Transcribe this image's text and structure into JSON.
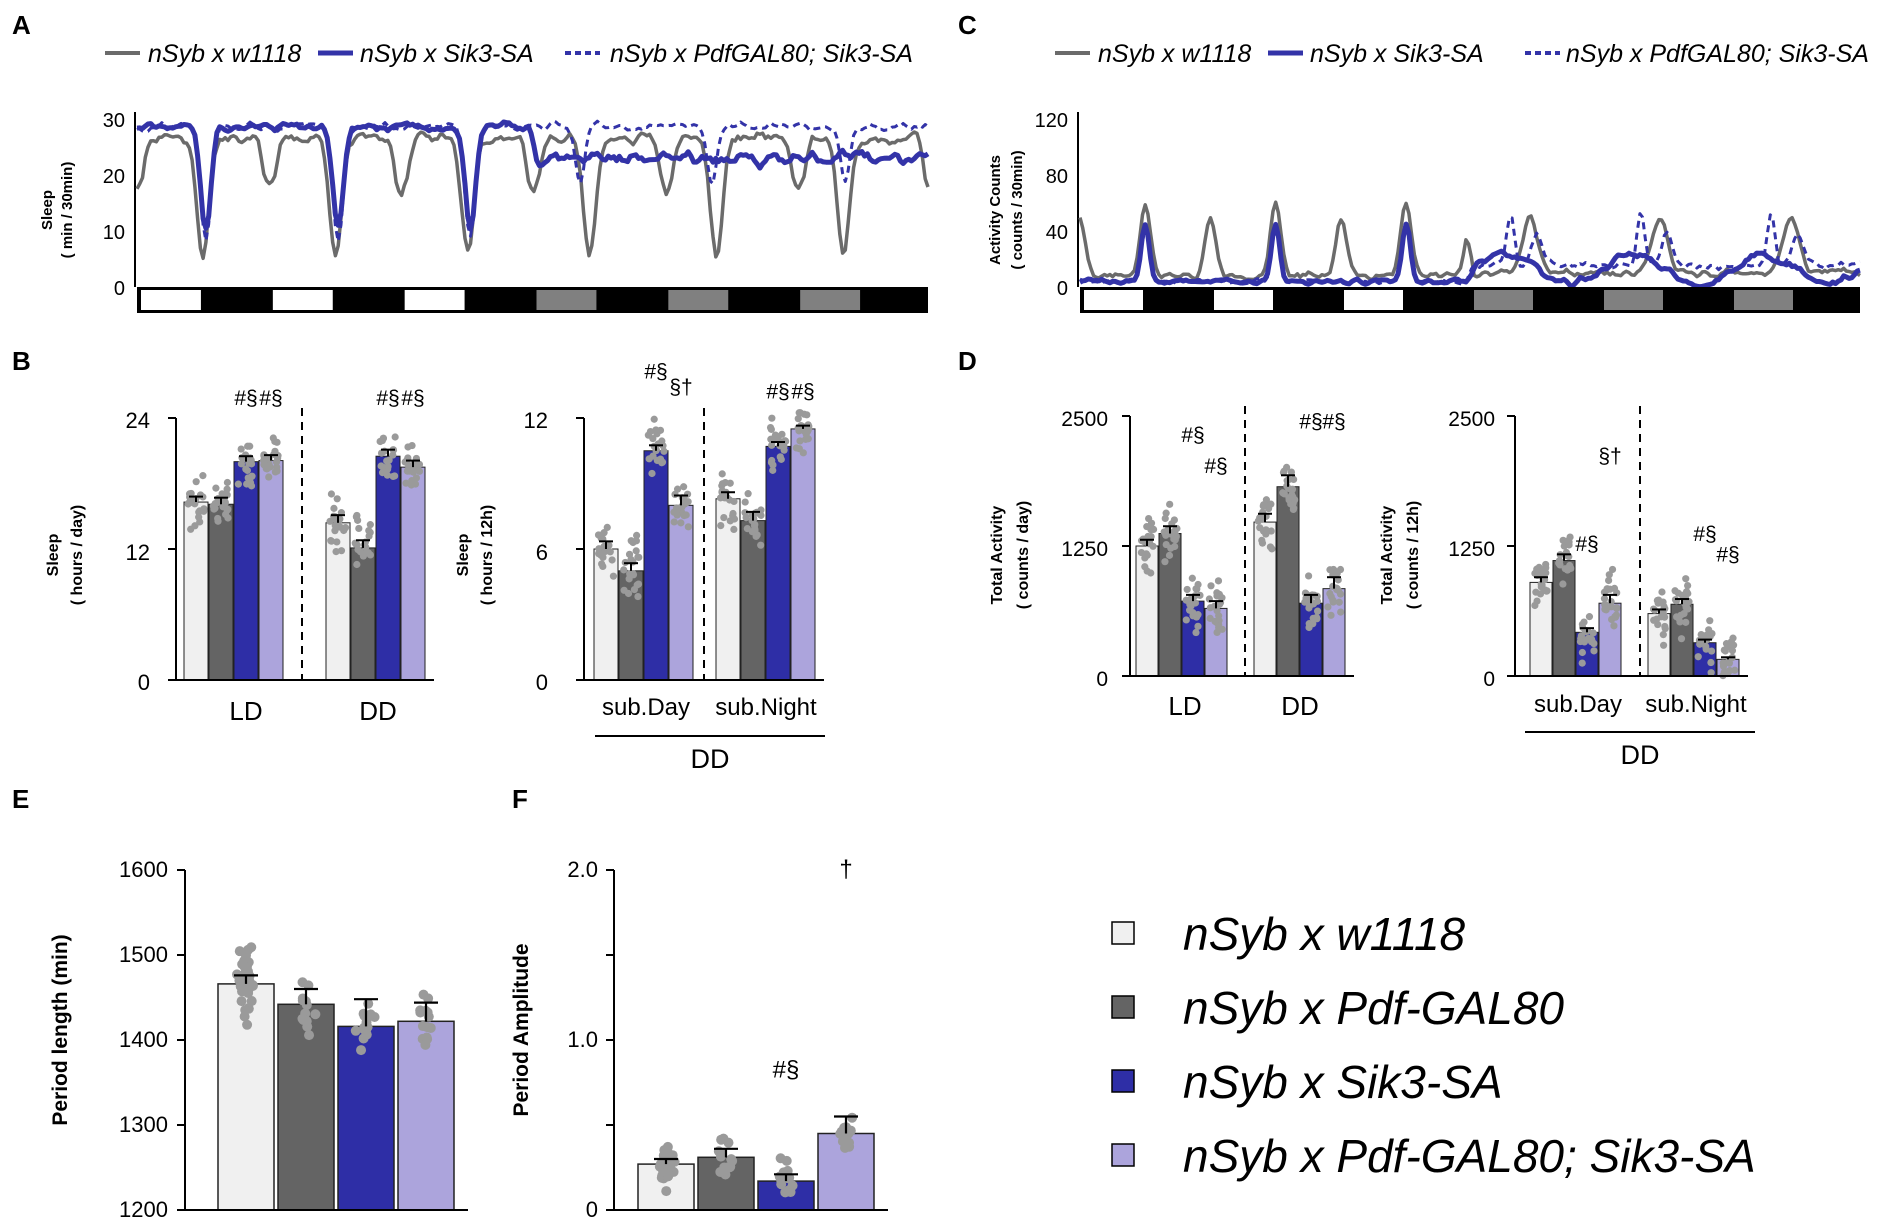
{
  "colors": {
    "c1": "#f0f0f0",
    "c2": "#646464",
    "c3": "#2e2ea6",
    "c4": "#aca4dc",
    "dots": "#9a9a9a",
    "grayline": "#6b6b6b",
    "blueline": "#3333a8",
    "axis": "#000000",
    "daybar": "#808080"
  },
  "panel_labels": [
    "A",
    "B",
    "C",
    "D",
    "E",
    "F"
  ],
  "top_legend": {
    "w1118": "nSyb x w1118",
    "sik3": "nSyb x Sik3-SA",
    "pdfsik3": "nSyb x PdfGAL80; Sik3-SA"
  },
  "legend": [
    {
      "label": "nSyb x w1118",
      "color": "#f0f0f0"
    },
    {
      "label": "nSyb x Pdf-GAL80",
      "color": "#646464"
    },
    {
      "label": "nSyb x Sik3-SA",
      "color": "#2e2ea6"
    },
    {
      "label": "nSyb x Pdf-GAL80; Sik3-SA",
      "color": "#aca4dc"
    }
  ],
  "chart_data": [
    {
      "id": "A",
      "type": "line",
      "ylabel_line1": "Sleep",
      "ylabel_line2": "( min / 30min)",
      "yticks": [
        "30",
        "20",
        "10",
        "0"
      ],
      "ylim": [
        0,
        30
      ],
      "days": 6,
      "day_bars": [
        "light",
        "light",
        "light",
        "subjective",
        "subjective",
        "subjective"
      ],
      "series": [
        {
          "name": "nSyb x w1118",
          "style": "solid-gray"
        },
        {
          "name": "nSyb x Sik3-SA",
          "style": "solid-blue"
        },
        {
          "name": "nSyb x PdfGAL80; Sik3-SA",
          "style": "dashed-blue"
        }
      ]
    },
    {
      "id": "C",
      "type": "line",
      "ylabel_line1": "Activity Counts",
      "ylabel_line2": "( counts / 30min)",
      "yticks": [
        "120",
        "80",
        "40",
        "0"
      ],
      "ylim": [
        0,
        120
      ],
      "days": 6,
      "day_bars": [
        "light",
        "light",
        "light",
        "subjective",
        "subjective",
        "subjective"
      ],
      "series": [
        {
          "name": "nSyb x w1118",
          "style": "solid-gray"
        },
        {
          "name": "nSyb x Sik3-SA",
          "style": "solid-blue"
        },
        {
          "name": "nSyb x PdfGAL80; Sik3-SA",
          "style": "dashed-blue"
        }
      ]
    },
    {
      "id": "B1",
      "type": "bar",
      "ylabel_line1": "Sleep",
      "ylabel_line2": "( hours / day)",
      "yticks": [
        "24",
        "12",
        "0"
      ],
      "ylim": [
        0,
        24
      ],
      "groups": [
        "LD",
        "DD"
      ],
      "values": [
        [
          16.3,
          16.1,
          20.0,
          20.1
        ],
        [
          14.4,
          12.1,
          20.5,
          19.5
        ]
      ],
      "errors": [
        [
          0.5,
          0.6,
          0.5,
          0.5
        ],
        [
          0.7,
          0.7,
          0.6,
          0.6
        ]
      ],
      "annotations": [
        {
          "group": 0,
          "bar": 2,
          "text": "#§",
          "y": 25.2
        },
        {
          "group": 0,
          "bar": 3,
          "text": "#§",
          "y": 25.2
        },
        {
          "group": 1,
          "bar": 2,
          "text": "#§",
          "y": 25.2
        },
        {
          "group": 1,
          "bar": 3,
          "text": "#§",
          "y": 25.2
        }
      ],
      "subgroup_label": ""
    },
    {
      "id": "B2",
      "type": "bar",
      "ylabel_line1": "Sleep",
      "ylabel_line2": "( hours / 12h)",
      "yticks": [
        "12",
        "6",
        "0"
      ],
      "ylim": [
        0,
        12
      ],
      "groups": [
        "sub.Day",
        "sub.Night"
      ],
      "values": [
        [
          6.0,
          5.0,
          10.5,
          8.0
        ],
        [
          8.3,
          7.3,
          10.7,
          11.5
        ]
      ],
      "errors": [
        [
          0.35,
          0.35,
          0.25,
          0.45
        ],
        [
          0.3,
          0.4,
          0.2,
          0.15
        ]
      ],
      "annotations": [
        {
          "group": 0,
          "bar": 2,
          "text": "#§",
          "y": 13.8
        },
        {
          "group": 0,
          "bar": 3,
          "text": "§†",
          "y": 13.1
        },
        {
          "group": 1,
          "bar": 2,
          "text": "#§",
          "y": 12.9
        },
        {
          "group": 1,
          "bar": 3,
          "text": "#§",
          "y": 12.9
        }
      ],
      "subgroup_label": "DD"
    },
    {
      "id": "D1",
      "type": "bar",
      "ylabel_line1": "Total Activity",
      "ylabel_line2": "( counts / day)",
      "yticks": [
        "2500",
        "1250",
        "0"
      ],
      "ylim": [
        0,
        2500
      ],
      "groups": [
        "LD",
        "DD"
      ],
      "values": [
        [
          1250,
          1370,
          720,
          650
        ],
        [
          1480,
          1820,
          700,
          840
        ]
      ],
      "errors": [
        [
          60,
          70,
          60,
          70
        ],
        [
          80,
          110,
          80,
          110
        ]
      ],
      "annotations": [
        {
          "group": 0,
          "bar": 2,
          "text": "#§",
          "y": 2250
        },
        {
          "group": 0,
          "bar": 3,
          "text": "#§",
          "y": 1950
        },
        {
          "group": 1,
          "bar": 2,
          "text": "#§",
          "y": 2380
        },
        {
          "group": 1,
          "bar": 3,
          "text": "#§",
          "y": 2380
        }
      ],
      "subgroup_label": ""
    },
    {
      "id": "D2",
      "type": "bar",
      "ylabel_line1": "Total Activity",
      "ylabel_line2": "( counts / 12h)",
      "yticks": [
        "2500",
        "1250",
        "0"
      ],
      "ylim": [
        0,
        2500
      ],
      "groups": [
        "sub.Day",
        "sub.Night"
      ],
      "values": [
        [
          900,
          1110,
          420,
          700
        ],
        [
          600,
          690,
          320,
          160
        ]
      ],
      "errors": [
        [
          50,
          60,
          40,
          80
        ],
        [
          40,
          50,
          30,
          20
        ]
      ],
      "annotations": [
        {
          "group": 0,
          "bar": 2,
          "text": "#§",
          "y": 1200
        },
        {
          "group": 0,
          "bar": 3,
          "text": "§†",
          "y": 2050
        },
        {
          "group": 1,
          "bar": 2,
          "text": "#§",
          "y": 1300
        },
        {
          "group": 1,
          "bar": 3,
          "text": "#§",
          "y": 1100
        }
      ],
      "subgroup_label": "DD"
    },
    {
      "id": "E",
      "type": "bar",
      "ylabel": "Period length (min)",
      "yticks": [
        "1600",
        "1500",
        "1400",
        "1300",
        "1200"
      ],
      "ylim": [
        1200,
        1600
      ],
      "values": [
        1466,
        1442,
        1416,
        1422
      ],
      "errors": [
        10,
        18,
        32,
        22
      ],
      "annotations": []
    },
    {
      "id": "F",
      "type": "bar",
      "ylabel": "Period Amplitude",
      "yticks": [
        "2.0",
        "1.0",
        "0"
      ],
      "ylim": [
        0,
        2.0
      ],
      "values": [
        0.27,
        0.31,
        0.17,
        0.45
      ],
      "errors": [
        0.03,
        0.05,
        0.04,
        0.1
      ],
      "annotations": [
        {
          "bar": 2,
          "text": "#§",
          "y": 0.78
        },
        {
          "bar": 3,
          "text": "†",
          "y": 1.96
        }
      ]
    }
  ]
}
